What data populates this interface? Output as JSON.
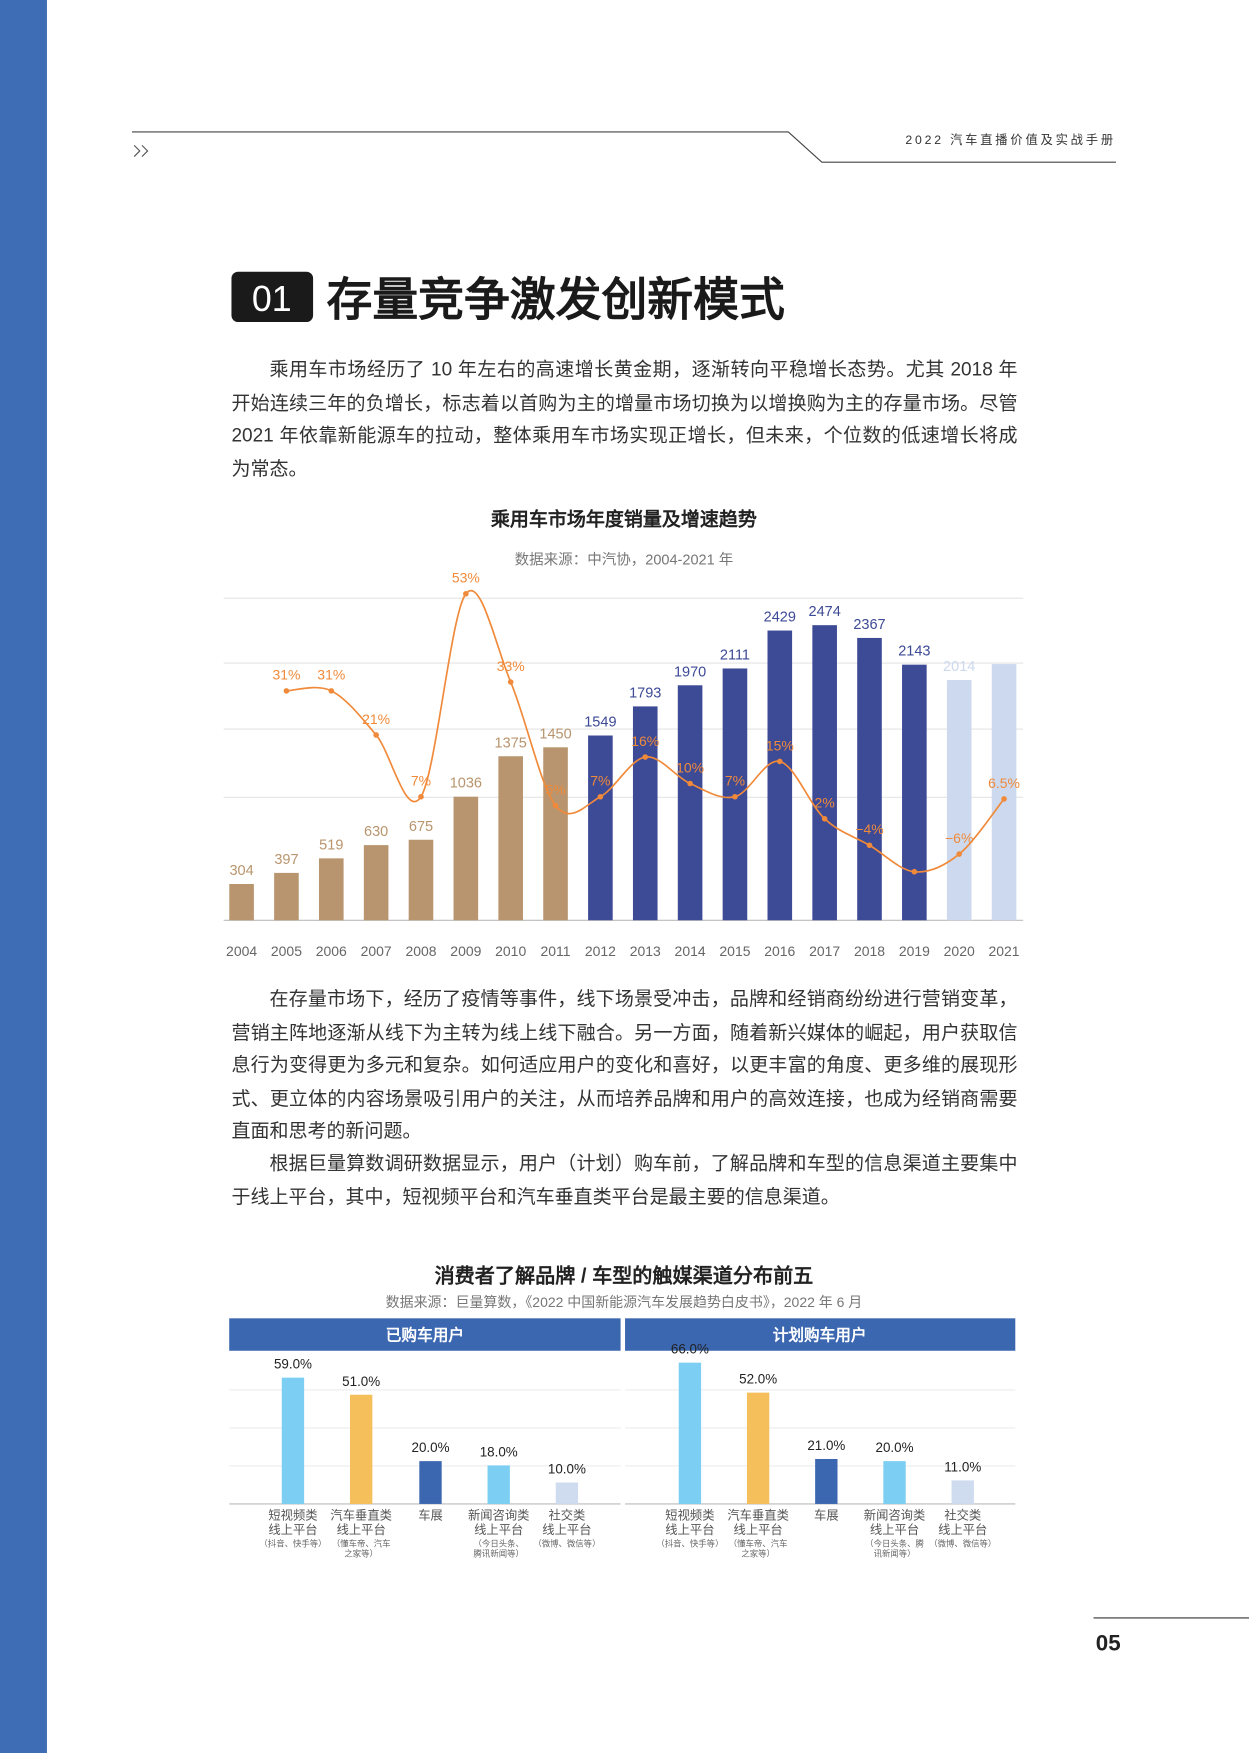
{
  "header": {
    "doc_title": "2022 汽车直播价值及实战手册"
  },
  "section": {
    "number": "01",
    "title": "存量竞争激发创新模式"
  },
  "paragraphs": [
    "乘用车市场经历了 10 年左右的高速增长黄金期，逐渐转向平稳增长态势。尤其 2018 年开始连续三年的负增长，标志着以首购为主的增量市场切换为以增换购为主的存量市场。尽管 2021 年依靠新能源车的拉动，整体乘用车市场实现正增长，但未来，个位数的低速增长将成为常态。",
    "在存量市场下，经历了疫情等事件，线下场景受冲击，品牌和经销商纷纷进行营销变革，营销主阵地逐渐从线下为主转为线上线下融合。另一方面，随着新兴媒体的崛起，用户获取信息行为变得更为多元和复杂。如何适应用户的变化和喜好，以更丰富的角度、更多维的展现形式、更立体的内容场景吸引用户的关注，从而培养品牌和用户的高效连接，也成为经销商需要直面和思考的新问题。",
    "根据巨量算数调研数据显示，用户（计划）购车前，了解品牌和车型的信息渠道主要集中于线上平台，其中，短视频平台和汽车垂直类平台是最主要的信息渠道。"
  ],
  "chart_data": [
    {
      "type": "bar",
      "title": "乘用车市场年度销量及增速趋势",
      "subtitle": "数据来源：中汽协，2004-2021 年",
      "categories": [
        "2004",
        "2005",
        "2006",
        "2007",
        "2008",
        "2009",
        "2010",
        "2011",
        "2012",
        "2013",
        "2014",
        "2015",
        "2016",
        "2017",
        "2018",
        "2019",
        "2020",
        "2021"
      ],
      "ylim": [
        0,
        2700
      ],
      "y2lim": [
        -21,
        52
      ],
      "series": [
        {
          "type": "bar",
          "colors": [
            "#b8956e",
            "#b8956e",
            "#b8956e",
            "#b8956e",
            "#b8956e",
            "#b8956e",
            "#b8956e",
            "#b8956e",
            "#3d4a96",
            "#3d4a96",
            "#3d4a96",
            "#3d4a96",
            "#3d4a96",
            "#3d4a96",
            "#3d4a96",
            "#3d4a96",
            "#cdd9ee",
            "#cdd9ee"
          ],
          "values": [
            304,
            397,
            519,
            630,
            675,
            1036,
            1375,
            1450,
            1549,
            1793,
            1970,
            2111,
            2429,
            2474,
            2367,
            2143,
            2014,
            2148
          ],
          "value_labels": [
            "304",
            "397",
            "519",
            "630",
            "675",
            "1036",
            "1375",
            "1450",
            "1549",
            "1793",
            "1970",
            "2111",
            "2429",
            "2474",
            "2367",
            "2143",
            "2014",
            null
          ]
        },
        {
          "type": "line",
          "axis": "y2",
          "color": "#f08a3a",
          "values": [
            null,
            31,
            31,
            21,
            7,
            53,
            33,
            5,
            7,
            16,
            10,
            7,
            15,
            2,
            -4,
            -10,
            -6,
            6.5
          ],
          "value_labels": [
            null,
            "31%",
            "31%",
            "21%",
            "7%",
            "53%",
            "33%",
            "5%",
            "7%",
            "16%",
            "10%",
            "7%",
            "15%",
            "2%",
            "−4%",
            null,
            "−6%",
            "6.5%"
          ]
        }
      ]
    },
    {
      "type": "bar",
      "title": "消费者了解品牌 / 车型的触媒渠道分布前五",
      "subtitle": "数据来源：巨量算数，《2022 中国新能源汽车发展趋势白皮书》，2022 年 6 月",
      "panel_title": "已购车用户",
      "ylim": [
        0,
        70
      ],
      "categories": [
        "短视频类\n线上平台",
        "汽车垂直类\n线上平台",
        "车展",
        "新闻咨询类\n线上平台",
        "社交类\n线上平台"
      ],
      "category_notes": [
        "（抖音、快手等）",
        "（懂车帝、汽车\n之家等）",
        null,
        "（今日头条、\n腾讯新闻等）",
        "（微博、微信等）"
      ],
      "colors": [
        "#7ccff2",
        "#f5bf5b",
        "#3b66b0",
        "#7ccff2",
        "#cfdcf0"
      ],
      "values": [
        59,
        51,
        20,
        18,
        10
      ],
      "value_labels": [
        "59.0%",
        "51.0%",
        "20.0%",
        "18.0%",
        "10.0%"
      ]
    },
    {
      "type": "bar",
      "panel_title": "计划购车用户",
      "ylim": [
        0,
        70
      ],
      "categories": [
        "短视频类\n线上平台",
        "汽车垂直类\n线上平台",
        "车展",
        "新闻咨询类\n线上平台",
        "社交类\n线上平台"
      ],
      "category_notes": [
        "（抖音、快手等）",
        "（懂车帝、汽车\n之家等）",
        null,
        "（今日头条、腾\n讯新闻等）",
        "（微博、微信等）"
      ],
      "colors": [
        "#7ccff2",
        "#f5bf5b",
        "#3b66b0",
        "#7ccff2",
        "#cfdcf0"
      ],
      "values": [
        66,
        52,
        21,
        20,
        11
      ],
      "value_labels": [
        "66.0%",
        "52.0%",
        "21.0%",
        "20.0%",
        "11.0%"
      ]
    }
  ]
}
